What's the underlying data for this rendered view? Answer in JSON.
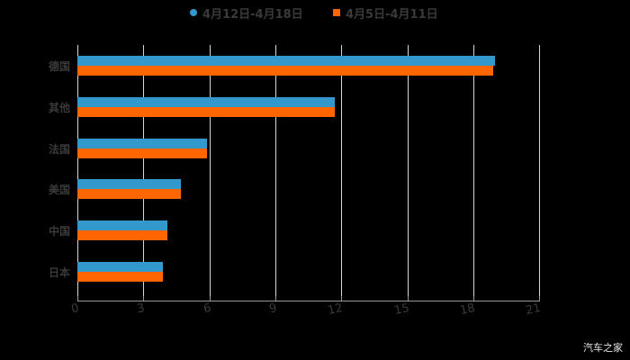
{
  "chart_data": {
    "type": "bar",
    "orientation": "horizontal",
    "title": "",
    "categories": [
      "德国",
      "其他",
      "法国",
      "美国",
      "中国",
      "日本"
    ],
    "series": [
      {
        "name": "4月12日-4月18日",
        "color": "#3399cc",
        "values": [
          19.0,
          11.7,
          5.9,
          4.7,
          4.1,
          3.9
        ]
      },
      {
        "name": "4月5日-4月11日",
        "color": "#ff6600",
        "values": [
          18.9,
          11.7,
          5.9,
          4.7,
          4.1,
          3.9
        ]
      }
    ],
    "xlabel": "",
    "ylabel": "",
    "xlim": [
      0,
      21
    ],
    "xticks": [
      "0",
      "3",
      "6",
      "9",
      "12",
      "15",
      "18",
      "21"
    ],
    "grid": true,
    "legend_position": "top"
  },
  "legend": {
    "items": [
      {
        "label": "4月12日-4月18日",
        "color": "#3399cc",
        "marker": "circle"
      },
      {
        "label": "4月5日-4月11日",
        "color": "#ff6600",
        "marker": "square"
      }
    ]
  },
  "axis": {
    "ticks": [
      "0",
      "3",
      "6",
      "9",
      "12",
      "15",
      "18",
      "21"
    ]
  },
  "categories": [
    "德国",
    "其他",
    "法国",
    "美国",
    "中国",
    "日本"
  ],
  "watermark": "汽车之家"
}
